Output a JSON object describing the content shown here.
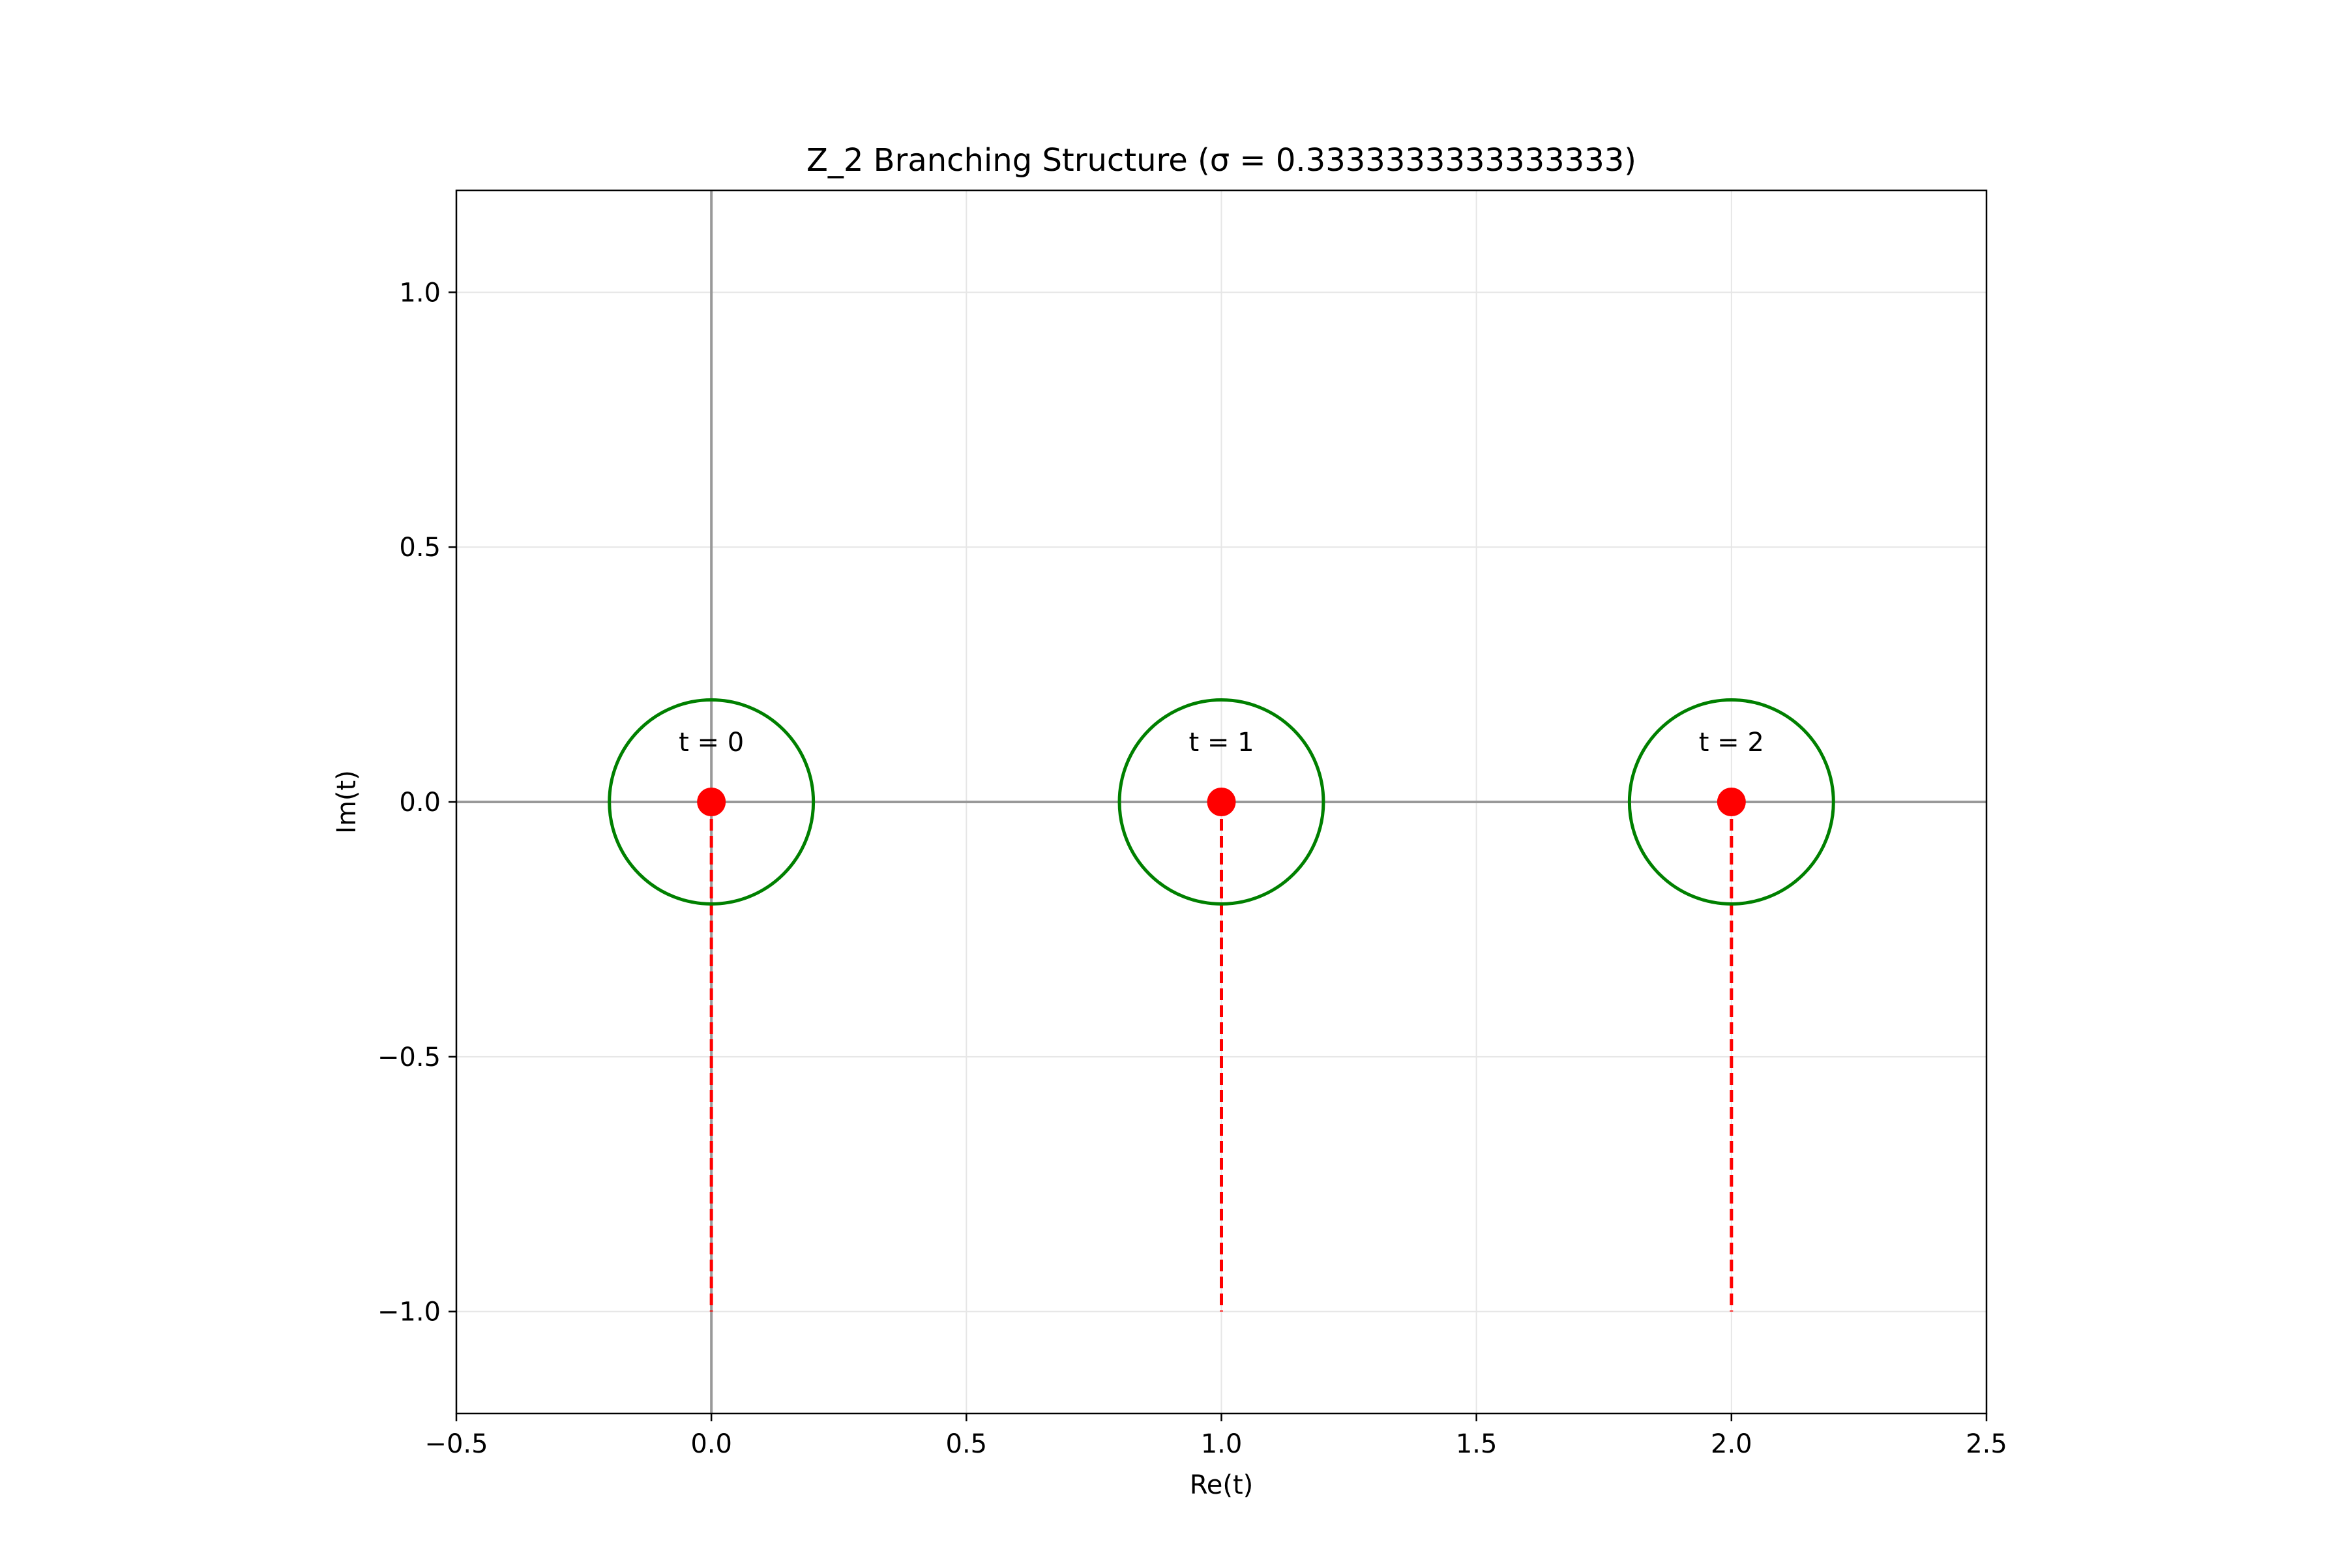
{
  "chart_data": {
    "type": "scatter",
    "title": "Z_2 Branching Structure (σ = 0.3333333333333333)",
    "xlabel": "Re(t)",
    "ylabel": "Im(t)",
    "xlim": [
      -0.5,
      2.5
    ],
    "ylim": [
      -1.2,
      1.2
    ],
    "xticks": [
      -0.5,
      0.0,
      0.5,
      1.0,
      1.5,
      2.0,
      2.5
    ],
    "xtick_labels": [
      "−0.5",
      "0.0",
      "0.5",
      "1.0",
      "1.5",
      "2.0",
      "2.5"
    ],
    "yticks": [
      -1.0,
      -0.5,
      0.0,
      0.5,
      1.0
    ],
    "ytick_labels": [
      "−1.0",
      "−0.5",
      "0.0",
      "0.5",
      "1.0"
    ],
    "grid": true,
    "reference_lines": {
      "x": 0,
      "y": 0,
      "color": "#999999"
    },
    "branch_points": {
      "x": [
        0,
        1,
        2
      ],
      "y": [
        0,
        0,
        0
      ],
      "labels": [
        "t = 0",
        "t = 1",
        "t = 2"
      ],
      "color": "#ff0000"
    },
    "circles": {
      "centers_x": [
        0,
        1,
        2
      ],
      "center_y": 0,
      "radius": 0.2,
      "color": "#008000"
    },
    "branch_cuts": {
      "x": [
        0,
        1,
        2
      ],
      "y_from": 0,
      "y_to": -1.0,
      "color": "#ff0000",
      "style": "dashed"
    }
  }
}
